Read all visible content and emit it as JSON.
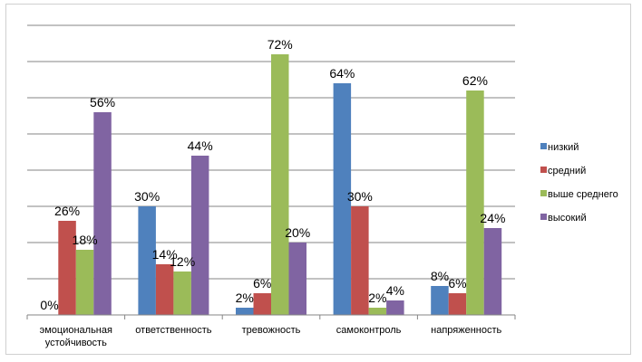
{
  "chart_data": {
    "type": "bar",
    "categories": [
      "эмоциональная устойчивость",
      "ответственность",
      "тревожность",
      "самоконтроль",
      "напряженность"
    ],
    "series": [
      {
        "name": "низкий",
        "color": "#4f81bd",
        "values": [
          0,
          30,
          2,
          64,
          8
        ],
        "labels": [
          "0%",
          "30%",
          "2%",
          "64%",
          "8%"
        ]
      },
      {
        "name": "средний",
        "color": "#c0504d",
        "values": [
          26,
          14,
          6,
          30,
          6
        ],
        "labels": [
          "26%",
          "14%",
          "6%",
          "30%",
          "6%"
        ]
      },
      {
        "name": "выше среднего",
        "color": "#9bbb59",
        "values": [
          18,
          12,
          72,
          2,
          62
        ],
        "labels": [
          "18%",
          "12%",
          "72%",
          "2%",
          "62%"
        ]
      },
      {
        "name": "высокий",
        "color": "#8064a2",
        "values": [
          56,
          44,
          20,
          4,
          24
        ],
        "labels": [
          "56%",
          "44%",
          "20%",
          "4%",
          "24%"
        ]
      }
    ],
    "ylim": [
      0,
      80
    ],
    "ytick_step": 10,
    "grid": true,
    "legend": "right"
  }
}
